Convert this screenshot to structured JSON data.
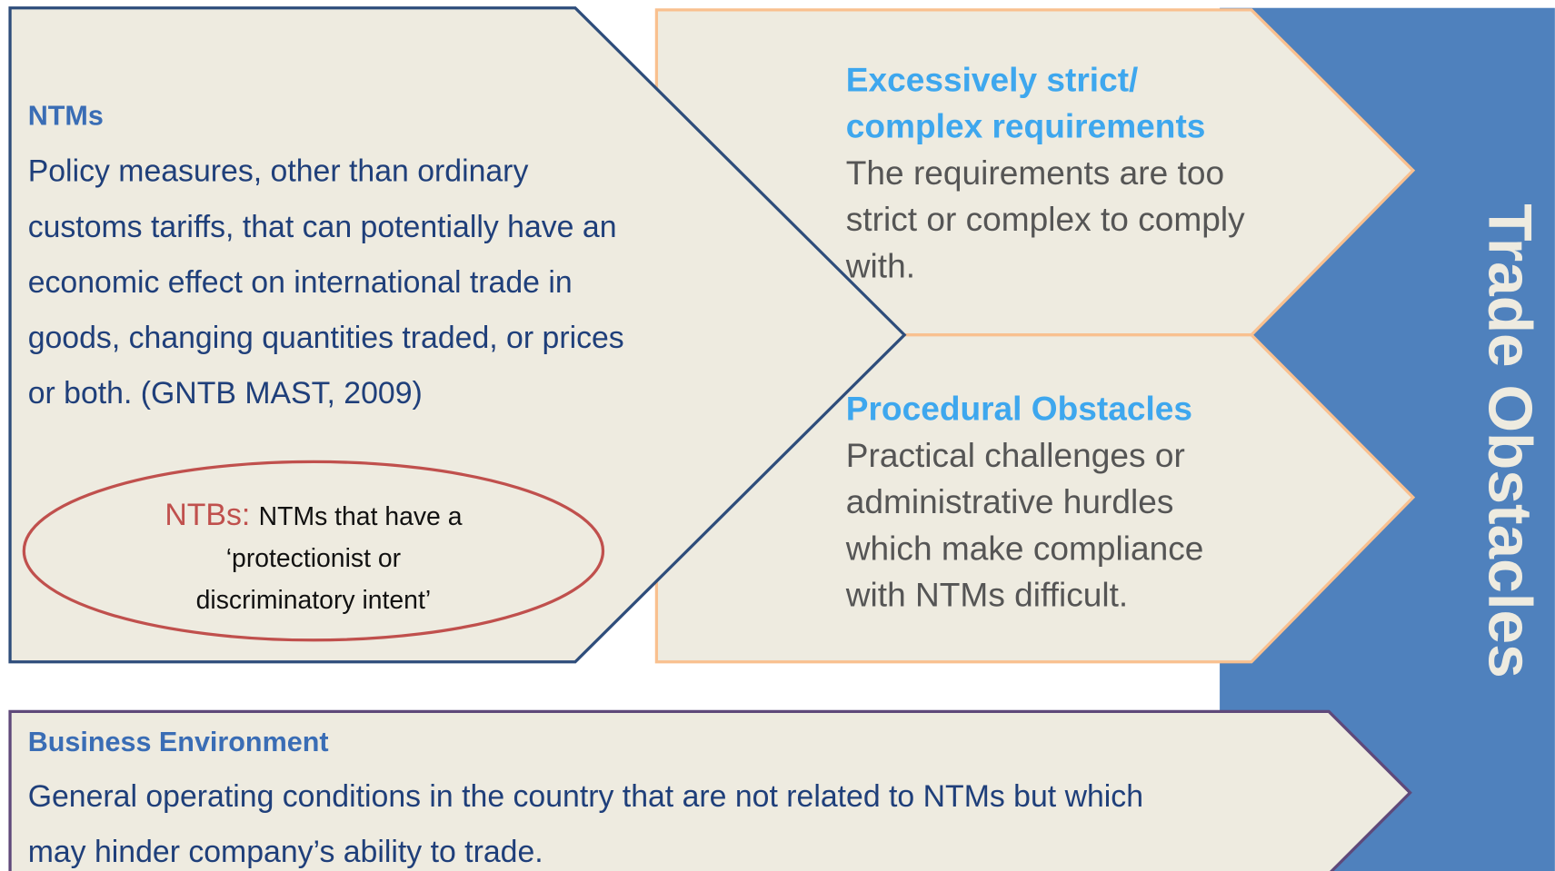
{
  "ntms": {
    "heading": "NTMs",
    "lines": [
      "Policy measures, other than ordinary",
      "customs tariffs, that can potentially have an",
      "economic effect on international trade in",
      "goods, changing quantities traded, or prices",
      "or both. (GNTB MAST, 2009)"
    ]
  },
  "ntbs": {
    "label": "NTBs:",
    "lines": [
      "NTMs that have a",
      "‘protectionist or",
      "discriminatory intent’"
    ]
  },
  "obstacles": [
    {
      "heading": [
        "Excessively strict/",
        "complex requirements"
      ],
      "lines": [
        "The requirements are too",
        "strict or complex to comply",
        "with."
      ]
    },
    {
      "heading": [
        "Procedural Obstacles"
      ],
      "lines": [
        "Practical challenges or",
        "administrative hurdles",
        "which make compliance",
        "with NTMs difficult."
      ]
    }
  ],
  "side_title": "Trade Obstacles",
  "business": {
    "heading": "Business Environment",
    "lines": [
      "General operating conditions in the country that are not related to NTMs but which",
      "may hinder company’s ability to trade."
    ]
  }
}
